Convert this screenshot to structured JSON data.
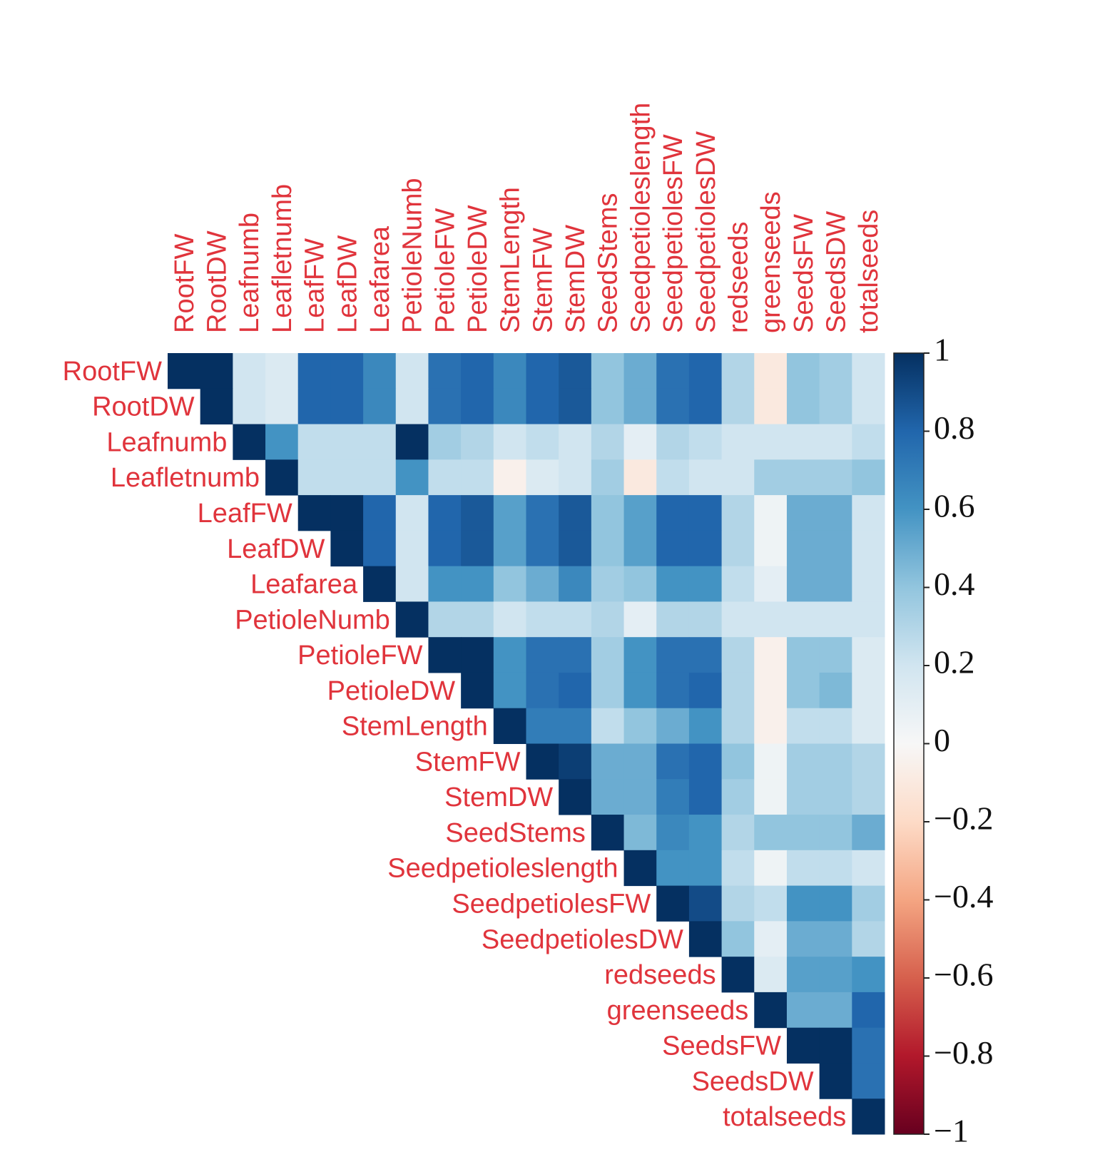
{
  "chart_data": {
    "type": "heatmap",
    "categories": [
      "RootFW",
      "RootDW",
      "Leafnumb",
      "Leafletnumb",
      "LeafFW",
      "LeafDW",
      "Leafarea",
      "PetioleNumb",
      "PetioleFW",
      "PetioleDW",
      "StemLength",
      "StemFW",
      "StemDW",
      "SeedStems",
      "Seedpetioleslength",
      "SeedpetiolesFW",
      "SeedpetiolesDW",
      "redseeds",
      "greenseeds",
      "SeedsFW",
      "SeedsDW",
      "totalseeds"
    ],
    "values": [
      [
        1,
        1,
        0.2,
        0.15,
        0.8,
        0.8,
        0.65,
        0.2,
        0.75,
        0.8,
        0.65,
        0.8,
        0.85,
        0.4,
        0.5,
        0.75,
        0.8,
        0.3,
        -0.1,
        0.4,
        0.35,
        0.2
      ],
      [
        null,
        1,
        0.2,
        0.15,
        0.8,
        0.8,
        0.65,
        0.2,
        0.75,
        0.8,
        0.65,
        0.8,
        0.85,
        0.4,
        0.5,
        0.75,
        0.8,
        0.3,
        -0.1,
        0.4,
        0.35,
        0.2
      ],
      [
        null,
        null,
        1,
        0.6,
        0.25,
        0.25,
        0.25,
        1,
        0.35,
        0.3,
        0.2,
        0.25,
        0.2,
        0.3,
        0.1,
        0.3,
        0.25,
        0.2,
        0.2,
        0.2,
        0.2,
        0.25
      ],
      [
        null,
        null,
        null,
        1,
        0.25,
        0.25,
        0.25,
        0.6,
        0.25,
        0.25,
        -0.05,
        0.15,
        0.2,
        0.35,
        -0.1,
        0.25,
        0.2,
        0.2,
        0.35,
        0.35,
        0.35,
        0.4
      ],
      [
        null,
        null,
        null,
        null,
        1,
        1,
        0.8,
        0.2,
        0.8,
        0.85,
        0.55,
        0.75,
        0.85,
        0.4,
        0.55,
        0.8,
        0.8,
        0.3,
        0.05,
        0.5,
        0.5,
        0.2
      ],
      [
        null,
        null,
        null,
        null,
        null,
        1,
        0.8,
        0.2,
        0.8,
        0.85,
        0.55,
        0.75,
        0.85,
        0.4,
        0.55,
        0.8,
        0.8,
        0.3,
        0.05,
        0.5,
        0.5,
        0.2
      ],
      [
        null,
        null,
        null,
        null,
        null,
        null,
        1,
        0.2,
        0.6,
        0.6,
        0.4,
        0.5,
        0.65,
        0.35,
        0.4,
        0.6,
        0.6,
        0.25,
        0.1,
        0.5,
        0.5,
        0.2
      ],
      [
        null,
        null,
        null,
        null,
        null,
        null,
        null,
        1,
        0.3,
        0.3,
        0.2,
        0.25,
        0.25,
        0.3,
        0.1,
        0.3,
        0.3,
        0.2,
        0.2,
        0.2,
        0.2,
        0.2
      ],
      [
        null,
        null,
        null,
        null,
        null,
        null,
        null,
        null,
        1,
        1,
        0.6,
        0.75,
        0.75,
        0.35,
        0.6,
        0.75,
        0.75,
        0.3,
        -0.05,
        0.4,
        0.4,
        0.15
      ],
      [
        null,
        null,
        null,
        null,
        null,
        null,
        null,
        null,
        null,
        1,
        0.6,
        0.75,
        0.8,
        0.35,
        0.6,
        0.75,
        0.8,
        0.3,
        -0.05,
        0.4,
        0.45,
        0.15
      ],
      [
        null,
        null,
        null,
        null,
        null,
        null,
        null,
        null,
        null,
        null,
        1,
        0.7,
        0.7,
        0.25,
        0.4,
        0.5,
        0.6,
        0.3,
        -0.05,
        0.25,
        0.25,
        0.15
      ],
      [
        null,
        null,
        null,
        null,
        null,
        null,
        null,
        null,
        null,
        null,
        null,
        1,
        0.95,
        0.5,
        0.5,
        0.75,
        0.8,
        0.4,
        0.05,
        0.35,
        0.35,
        0.3
      ],
      [
        null,
        null,
        null,
        null,
        null,
        null,
        null,
        null,
        null,
        null,
        null,
        null,
        1,
        0.5,
        0.5,
        0.7,
        0.8,
        0.35,
        0.05,
        0.35,
        0.35,
        0.3
      ],
      [
        null,
        null,
        null,
        null,
        null,
        null,
        null,
        null,
        null,
        null,
        null,
        null,
        null,
        1,
        0.45,
        0.65,
        0.6,
        0.3,
        0.4,
        0.4,
        0.4,
        0.5
      ],
      [
        null,
        null,
        null,
        null,
        null,
        null,
        null,
        null,
        null,
        null,
        null,
        null,
        null,
        null,
        1,
        0.6,
        0.6,
        0.25,
        0.05,
        0.25,
        0.25,
        0.2
      ],
      [
        null,
        null,
        null,
        null,
        null,
        null,
        null,
        null,
        null,
        null,
        null,
        null,
        null,
        null,
        null,
        1,
        0.9,
        0.3,
        0.25,
        0.6,
        0.6,
        0.35
      ],
      [
        null,
        null,
        null,
        null,
        null,
        null,
        null,
        null,
        null,
        null,
        null,
        null,
        null,
        null,
        null,
        null,
        1,
        0.4,
        0.1,
        0.5,
        0.5,
        0.3
      ],
      [
        null,
        null,
        null,
        null,
        null,
        null,
        null,
        null,
        null,
        null,
        null,
        null,
        null,
        null,
        null,
        null,
        null,
        1,
        0.15,
        0.55,
        0.55,
        0.6
      ],
      [
        null,
        null,
        null,
        null,
        null,
        null,
        null,
        null,
        null,
        null,
        null,
        null,
        null,
        null,
        null,
        null,
        null,
        null,
        1,
        0.5,
        0.5,
        0.8
      ],
      [
        null,
        null,
        null,
        null,
        null,
        null,
        null,
        null,
        null,
        null,
        null,
        null,
        null,
        null,
        null,
        null,
        null,
        null,
        null,
        1,
        1,
        0.75
      ],
      [
        null,
        null,
        null,
        null,
        null,
        null,
        null,
        null,
        null,
        null,
        null,
        null,
        null,
        null,
        null,
        null,
        null,
        null,
        null,
        null,
        1,
        0.75
      ],
      [
        null,
        null,
        null,
        null,
        null,
        null,
        null,
        null,
        null,
        null,
        null,
        null,
        null,
        null,
        null,
        null,
        null,
        null,
        null,
        null,
        null,
        1
      ]
    ],
    "colormap": [
      "#67001f",
      "#b2182b",
      "#d6604d",
      "#f4a582",
      "#fddbc7",
      "#f7f7f7",
      "#d1e5f0",
      "#92c5de",
      "#4393c3",
      "#2166ac",
      "#053061"
    ],
    "clim": [
      -1,
      1
    ],
    "cticks": [
      1,
      0.8,
      0.6,
      0.4,
      0.2,
      0,
      {
        "value": -0.2,
        "label": "−0.2"
      },
      {
        "value": -0.4,
        "label": "−0.4"
      },
      {
        "value": -0.6,
        "label": "−0.6"
      },
      {
        "value": -0.8,
        "label": "−0.8"
      },
      {
        "value": -1,
        "label": "−1"
      }
    ]
  }
}
